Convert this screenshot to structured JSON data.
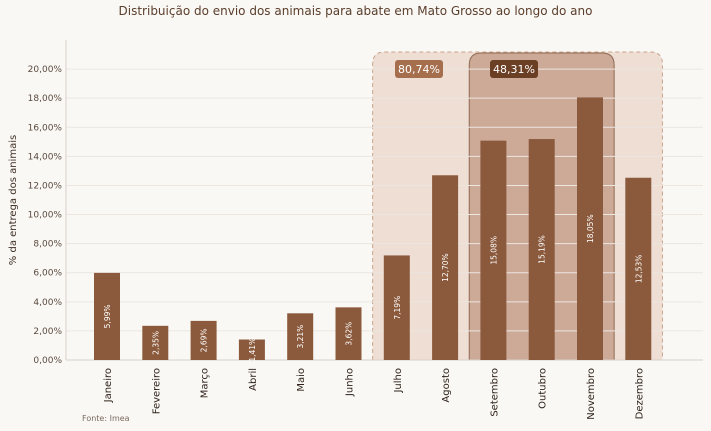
{
  "chart_data": {
    "type": "bar",
    "title": "Distribuição do envio dos animais para abate em Mato Grosso ao longo do ano",
    "ylabel": "% da entrega dos animais",
    "xlabel": "",
    "categories": [
      "Janeiro",
      "Fevereiro",
      "Março",
      "Abril",
      "Maio",
      "Junho",
      "Julho",
      "Agosto",
      "Setembro",
      "Outubro",
      "Novembro",
      "Dezembro"
    ],
    "values": [
      5.99,
      2.35,
      2.69,
      1.41,
      3.21,
      3.62,
      7.19,
      12.7,
      15.08,
      15.19,
      18.05,
      12.53
    ],
    "value_labels": [
      "5,99%",
      "2,35%",
      "2,69%",
      "1,41%",
      "3,21%",
      "3,62%",
      "7,19%",
      "12,70%",
      "15,08%",
      "15,19%",
      "18,05%",
      "12,53%"
    ],
    "yticks": [
      0,
      2,
      4,
      6,
      8,
      10,
      12,
      14,
      16,
      18,
      20
    ],
    "ytick_labels": [
      "0,00%",
      "2,00%",
      "4,00%",
      "6,00%",
      "8,00%",
      "10,00%",
      "12,00%",
      "14,00%",
      "16,00%",
      "18,00%",
      "20,00%"
    ],
    "ylim": [
      0,
      22
    ],
    "grid": true,
    "bar_color": "#8b5a3c",
    "highlights": [
      {
        "label": "80,74%",
        "from": "Julho",
        "to": "Dezembro",
        "color": "#e9d6c8",
        "border": "#c9a48c",
        "style": "dashed"
      },
      {
        "label": "48,31%",
        "from": "Setembro",
        "to": "Novembro",
        "color": "#c9a391",
        "border": "#8e6a52",
        "style": "solid"
      }
    ],
    "source": "Fonte: Imea"
  }
}
